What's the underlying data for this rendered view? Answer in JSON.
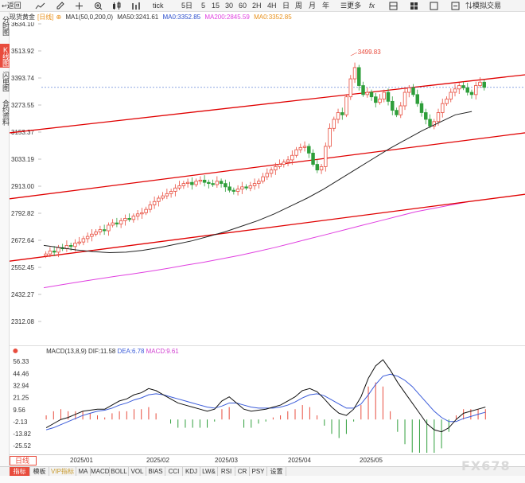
{
  "toolbar": {
    "back": "返回",
    "periods": [
      "5日",
      "5",
      "15",
      "30",
      "60",
      "2H",
      "4H",
      "日",
      "周",
      "月",
      "年"
    ],
    "tick": "tick",
    "more": "更多",
    "sim": "模拟交易"
  },
  "side_tabs": [
    "分时图",
    "K线图",
    "闪电图",
    "合约资料"
  ],
  "info": {
    "name": "现货黄金",
    "period": "[日线]",
    "ma_params": "MA1(50,0,200,0)",
    "ma50": "MA50:3241.61",
    "ma0a": "MA0:3352.85",
    "ma200": "MA200:2845.59",
    "ma0b": "MA0:3352.85"
  },
  "colors": {
    "up": "#e84c3d",
    "down": "#2e9e3a",
    "ma50": "#222222",
    "ma200": "#e040e0",
    "channel": "#e00000",
    "dif": "#111111",
    "dea": "#3a5bd9",
    "macd_label": "#d040d0"
  },
  "chart_data": [
    {
      "type": "candlestick",
      "title": "现货黄金 [日线]",
      "y_ticks": [
        "3634.10",
        "3513.92",
        "3393.74",
        "3273.55",
        "3153.37",
        "3033.19",
        "2913.00",
        "2792.82",
        "2672.64",
        "2552.45",
        "2432.27",
        "2312.08"
      ],
      "ylim": [
        2312.08,
        3634.1
      ],
      "x_labels": [
        "2025/01",
        "2025/02",
        "2025/03",
        "2025/04",
        "2025/05"
      ],
      "high_annotation": "3499.83",
      "close_levels": [
        2612,
        2625,
        2620,
        2640,
        2635,
        2650,
        2645,
        2660,
        2665,
        2680,
        2690,
        2700,
        2710,
        2720,
        2715,
        2740,
        2750,
        2745,
        2760,
        2770,
        2765,
        2780,
        2790,
        2795,
        2810,
        2830,
        2845,
        2860,
        2870,
        2880,
        2890,
        2905,
        2915,
        2925,
        2930,
        2920,
        2935,
        2940,
        2930,
        2925,
        2920,
        2935,
        2925,
        2910,
        2895,
        2890,
        2900,
        2910,
        2905,
        2915,
        2925,
        2935,
        2955,
        2970,
        2985,
        3000,
        3010,
        3020,
        3030,
        3050,
        3075,
        3085,
        3090,
        3060,
        3010,
        2985,
        3000,
        3090,
        3170,
        3210,
        3240,
        3230,
        3310,
        3390,
        3440,
        3360,
        3320,
        3330,
        3310,
        3285,
        3300,
        3330,
        3290,
        3250,
        3230,
        3270,
        3330,
        3350,
        3320,
        3280,
        3240,
        3210,
        3180,
        3200,
        3240,
        3280,
        3300,
        3330,
        3345,
        3360,
        3350,
        3330,
        3320,
        3360,
        3375,
        3352
      ],
      "channel_lines": [
        {
          "from": [
            0,
            3150
          ],
          "to": [
            1,
            3408
          ]
        },
        {
          "from": [
            0,
            2857
          ],
          "to": [
            1,
            3150
          ]
        },
        {
          "from": [
            0,
            2580
          ],
          "to": [
            1,
            2877
          ]
        }
      ],
      "ma50": [
        2650,
        2640,
        2630,
        2622,
        2618,
        2620,
        2628,
        2640,
        2655,
        2670,
        2690,
        2710,
        2735,
        2760,
        2790,
        2825,
        2860,
        2900,
        2945,
        2990,
        3035,
        3080,
        3120,
        3160,
        3195,
        3230,
        3245
      ],
      "ma200": [
        2462,
        2475,
        2488,
        2500,
        2512,
        2523,
        2535,
        2548,
        2562,
        2575,
        2590,
        2605,
        2622,
        2640,
        2660,
        2680,
        2700,
        2720,
        2740,
        2760,
        2780,
        2800,
        2815,
        2830,
        2845
      ]
    },
    {
      "type": "macd",
      "title": "MACD(13,8,9)",
      "dif": "DIF:11.58",
      "dea": "DEA:6.78",
      "macd": "MACD:9.61",
      "y_ticks": [
        "56.33",
        "44.46",
        "32.94",
        "21.25",
        "9.56",
        "-2.13",
        "-13.82",
        "-25.52"
      ],
      "ylim": [
        -30,
        62
      ],
      "dif_values": [
        -8,
        -4,
        0,
        2,
        5,
        8,
        9,
        10,
        10,
        14,
        18,
        20,
        24,
        26,
        30,
        28,
        24,
        20,
        16,
        14,
        12,
        10,
        8,
        10,
        18,
        22,
        16,
        10,
        8,
        9,
        10,
        12,
        14,
        18,
        22,
        28,
        30,
        27,
        20,
        12,
        6,
        4,
        10,
        22,
        40,
        52,
        58,
        48,
        36,
        26,
        16,
        6,
        -4,
        -10,
        -12,
        -8,
        0,
        6,
        8,
        10,
        12
      ],
      "dea_values": [
        -10,
        -8,
        -5,
        -2,
        1,
        4,
        6,
        8,
        9,
        11,
        14,
        16,
        19,
        21,
        24,
        25,
        24,
        22,
        20,
        18,
        16,
        14,
        12,
        11,
        13,
        16,
        16,
        14,
        12,
        11,
        11,
        11,
        12,
        14,
        17,
        21,
        24,
        25,
        23,
        19,
        15,
        11,
        11,
        15,
        24,
        34,
        42,
        44,
        42,
        38,
        32,
        24,
        16,
        8,
        2,
        -2,
        -2,
        1,
        3,
        5,
        7
      ]
    }
  ],
  "indicator_tabs": [
    "指标",
    "模板",
    "VIP指标",
    "MA",
    "MACD",
    "BOLL",
    "VOL",
    "BIAS",
    "CCI",
    "KDJ",
    "LW&",
    "RSI",
    "CR",
    "PSY",
    "设置"
  ],
  "period_tab": "日线",
  "watermark": "FX678"
}
